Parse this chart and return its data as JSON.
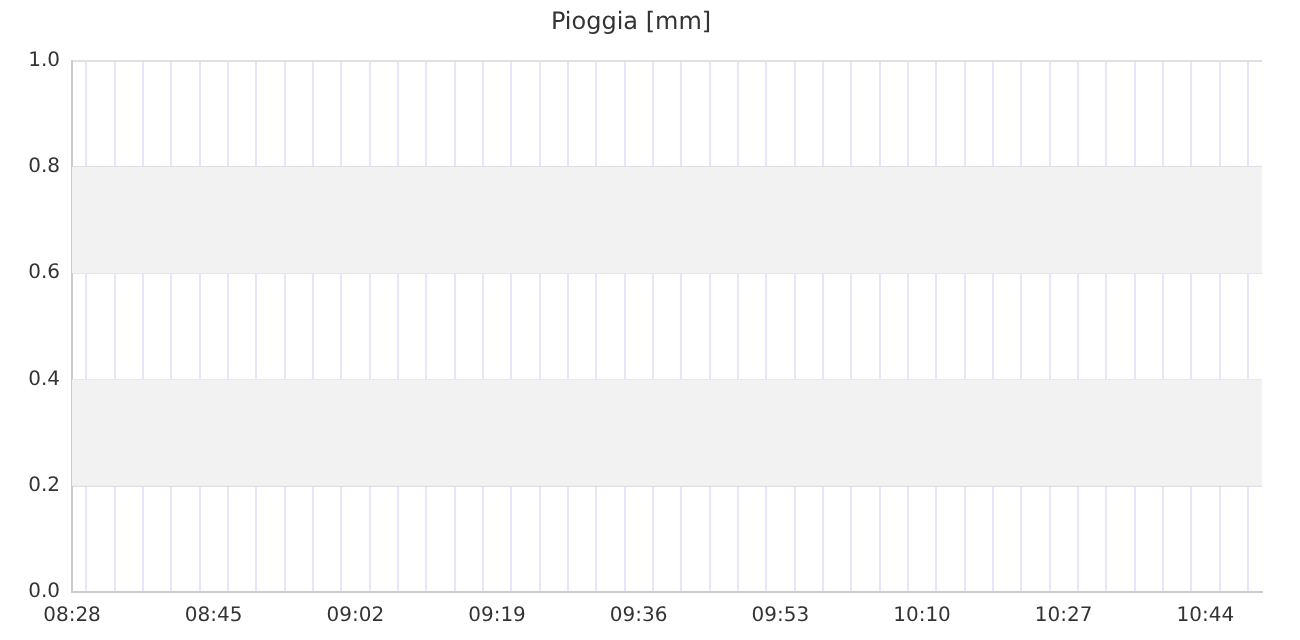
{
  "chart_data": {
    "type": "bar",
    "title": "Pioggia [mm]",
    "categories": [
      "08:28",
      null,
      null,
      null,
      null,
      "08:45",
      null,
      null,
      null,
      null,
      "09:02",
      null,
      null,
      null,
      null,
      "09:19",
      null,
      null,
      null,
      null,
      "09:36",
      null,
      null,
      null,
      null,
      "09:53",
      null,
      null,
      null,
      null,
      "10:10",
      null,
      null,
      null,
      null,
      "10:27",
      null,
      null,
      null,
      null,
      "10:44",
      null,
      null
    ],
    "values": [
      0,
      0,
      0,
      0,
      0,
      0,
      0,
      0,
      0,
      0,
      0,
      0,
      0,
      0,
      0,
      0,
      0,
      0,
      0,
      0,
      0,
      0,
      0,
      0,
      0,
      0,
      0,
      0,
      0,
      0,
      0,
      0,
      0,
      0,
      0,
      0,
      0,
      0,
      0,
      0,
      0,
      0,
      0
    ],
    "ylim": [
      0,
      1
    ],
    "yticks": [
      {
        "value": 0,
        "label": "0.0"
      },
      0.2,
      0.4,
      0.6,
      0.8,
      {
        "value": 1,
        "label": "1.0"
      }
    ],
    "bands": [
      {
        "axis": "y",
        "from": 0.2,
        "to": 0.4,
        "color": "#f2f2f2"
      },
      {
        "axis": "y",
        "from": 0.6,
        "to": 0.8,
        "color": "#f2f2f2"
      }
    ],
    "grid": true,
    "legend": false
  }
}
